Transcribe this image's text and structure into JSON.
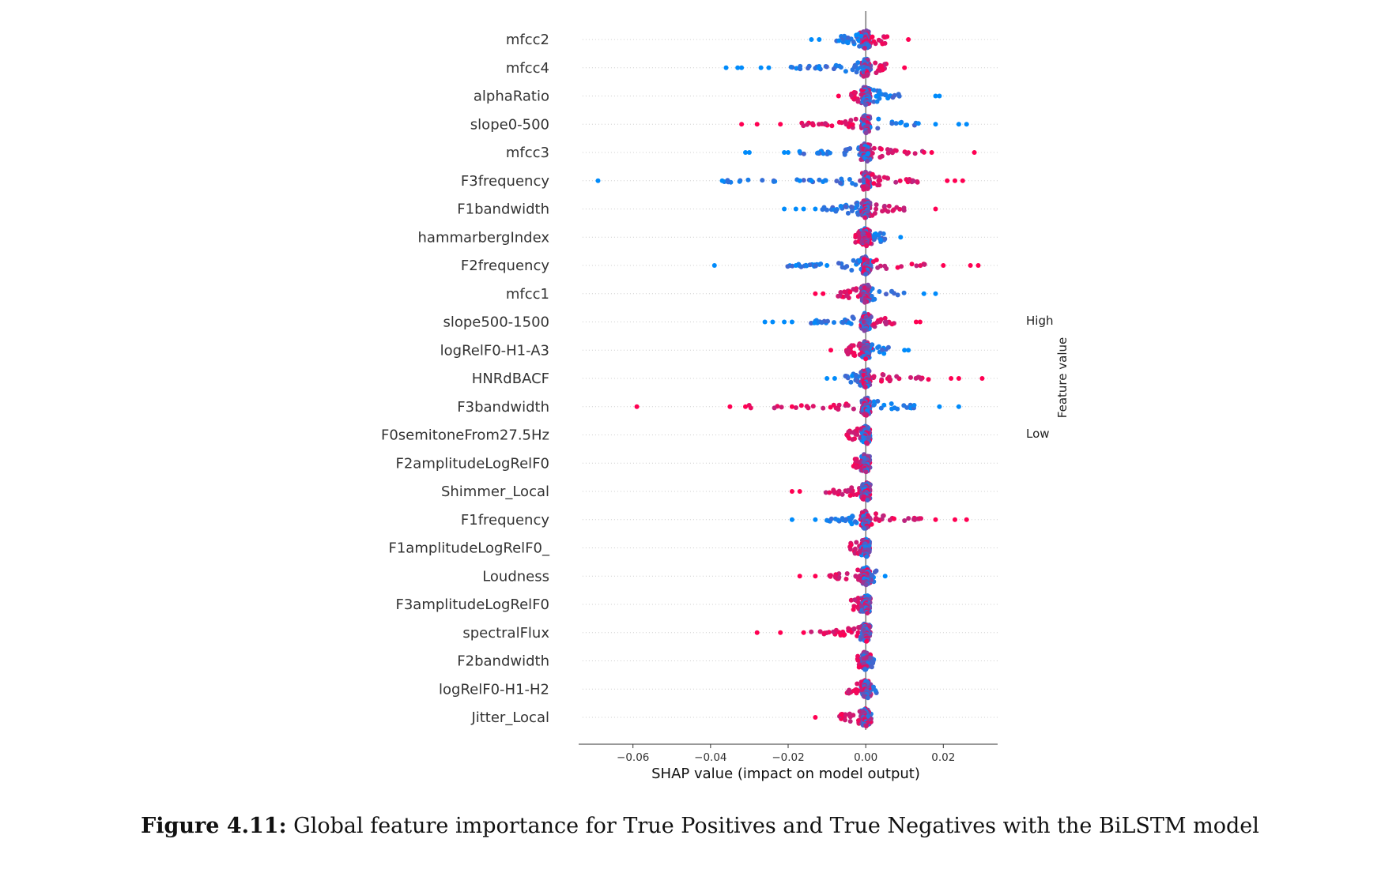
{
  "chart_data": {
    "type": "scatter",
    "subtype": "shap-beeswarm",
    "xlabel": "SHAP value (impact on model output)",
    "xlim": [
      -0.074,
      0.034
    ],
    "xticks": [
      -0.06,
      -0.04,
      -0.02,
      0.0,
      0.02
    ],
    "xtick_labels": [
      "−0.06",
      "−0.04",
      "−0.02",
      "0.00",
      "0.02"
    ],
    "colorbar": {
      "label": "Feature value",
      "high": "High",
      "low": "Low",
      "low_color": "#008bfb",
      "high_color": "#ff0052"
    },
    "features": [
      {
        "name": "mfcc2",
        "min": -0.014,
        "max": 0.012,
        "neg_color": "low",
        "extremes": [
          -0.014,
          -0.012,
          0.011
        ]
      },
      {
        "name": "mfcc4",
        "min": -0.036,
        "max": 0.01,
        "neg_color": "low",
        "extremes": [
          -0.036,
          -0.033,
          -0.032,
          -0.027,
          -0.025,
          0.01
        ]
      },
      {
        "name": "alphaRatio",
        "min": -0.007,
        "max": 0.019,
        "neg_color": "high",
        "extremes": [
          -0.007,
          0.018,
          0.019
        ]
      },
      {
        "name": "slope0-500",
        "min": -0.032,
        "max": 0.026,
        "neg_color": "high",
        "extremes": [
          -0.032,
          -0.028,
          -0.022,
          0.018,
          0.024,
          0.026
        ]
      },
      {
        "name": "mfcc3",
        "min": -0.031,
        "max": 0.028,
        "neg_color": "low",
        "extremes": [
          -0.031,
          -0.03,
          -0.021,
          -0.02,
          0.017,
          0.028
        ]
      },
      {
        "name": "F3frequency",
        "min": -0.069,
        "max": 0.025,
        "neg_color": "low",
        "extremes": [
          -0.069,
          -0.037,
          -0.017,
          -0.014,
          0.021,
          0.023,
          0.025
        ]
      },
      {
        "name": "F1bandwidth",
        "min": -0.021,
        "max": 0.018,
        "neg_color": "low",
        "extremes": [
          -0.021,
          -0.018,
          -0.016,
          -0.013,
          0.018
        ]
      },
      {
        "name": "hammarbergIndex",
        "min": -0.005,
        "max": 0.009,
        "neg_color": "high",
        "extremes": [
          0.009
        ]
      },
      {
        "name": "F2frequency",
        "min": -0.039,
        "max": 0.029,
        "neg_color": "low",
        "extremes": [
          -0.039,
          -0.018,
          -0.01,
          0.02,
          0.027,
          0.029
        ]
      },
      {
        "name": "mfcc1",
        "min": -0.013,
        "max": 0.018,
        "neg_color": "high",
        "extremes": [
          -0.013,
          -0.011,
          0.015,
          0.018
        ]
      },
      {
        "name": "slope500-1500",
        "min": -0.026,
        "max": 0.014,
        "neg_color": "low",
        "extremes": [
          -0.026,
          -0.024,
          -0.021,
          -0.019,
          0.013,
          0.014
        ]
      },
      {
        "name": "logRelF0-H1-A3",
        "min": -0.009,
        "max": 0.011,
        "neg_color": "high",
        "extremes": [
          -0.009,
          0.01,
          0.011
        ]
      },
      {
        "name": "HNRdBACF",
        "min": -0.01,
        "max": 0.03,
        "neg_color": "low",
        "extremes": [
          -0.01,
          -0.008,
          0.022,
          0.024,
          0.03
        ]
      },
      {
        "name": "F3bandwidth",
        "min": -0.059,
        "max": 0.024,
        "neg_color": "high",
        "extremes": [
          -0.059,
          -0.035,
          -0.031,
          -0.019,
          0.019,
          0.024
        ]
      },
      {
        "name": "F0semitoneFrom27.5Hz",
        "min": -0.009,
        "max": 0.002,
        "neg_color": "high",
        "extremes": []
      },
      {
        "name": "F2amplitudeLogRelF0",
        "min": -0.006,
        "max": 0.002,
        "neg_color": "high",
        "extremes": []
      },
      {
        "name": "Shimmer_Local",
        "min": -0.019,
        "max": 0.002,
        "neg_color": "high",
        "extremes": [
          -0.019,
          -0.017
        ]
      },
      {
        "name": "F1frequency",
        "min": -0.019,
        "max": 0.026,
        "neg_color": "low",
        "extremes": [
          -0.019,
          -0.013,
          0.018,
          0.023,
          0.026
        ]
      },
      {
        "name": "F1amplitudeLogRelF0_",
        "min": -0.008,
        "max": 0.001,
        "neg_color": "high",
        "extremes": []
      },
      {
        "name": "Loudness",
        "min": -0.017,
        "max": 0.005,
        "neg_color": "high",
        "extremes": [
          -0.017,
          -0.013,
          0.005
        ]
      },
      {
        "name": "F3amplitudeLogRelF0",
        "min": -0.007,
        "max": 0.002,
        "neg_color": "high",
        "extremes": []
      },
      {
        "name": "spectralFlux",
        "min": -0.028,
        "max": 0.002,
        "neg_color": "high",
        "extremes": [
          -0.028,
          -0.022,
          -0.016
        ]
      },
      {
        "name": "F2bandwidth",
        "min": -0.004,
        "max": 0.004,
        "neg_color": "high",
        "extremes": []
      },
      {
        "name": "logRelF0-H1-H2",
        "min": -0.009,
        "max": 0.006,
        "neg_color": "high",
        "extremes": []
      },
      {
        "name": "Jitter_Local",
        "min": -0.013,
        "max": 0.003,
        "neg_color": "high",
        "extremes": [
          -0.013
        ]
      }
    ]
  },
  "caption": {
    "label": "Figure 4.11:",
    "text": " Global feature importance for True Positives and True Negatives with the BiLSTM model"
  }
}
